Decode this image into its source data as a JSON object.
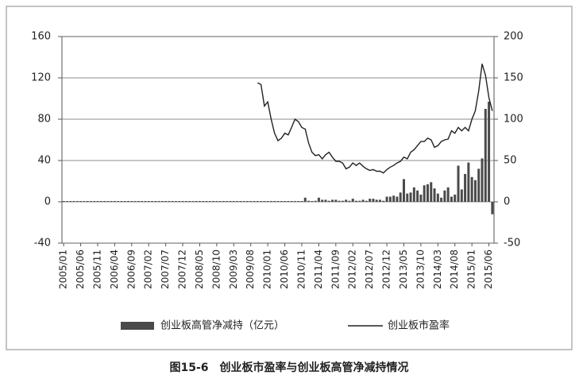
{
  "chart_data": {
    "type": "bar-line",
    "caption": "图15-6　创业板市盈率与创业板高管净减持情况",
    "categories": [
      "2005/01",
      null,
      null,
      null,
      null,
      "2005/06",
      null,
      null,
      null,
      null,
      "2005/11",
      null,
      null,
      null,
      null,
      "2006/04",
      null,
      null,
      null,
      null,
      "2006/09",
      null,
      null,
      null,
      null,
      "2007/02",
      null,
      null,
      null,
      null,
      "2007/07",
      null,
      null,
      null,
      null,
      "2007/12",
      null,
      null,
      null,
      null,
      "2008/05",
      null,
      null,
      null,
      null,
      "2008/10",
      null,
      null,
      null,
      null,
      "2009/03",
      null,
      null,
      null,
      null,
      "2009/08",
      null,
      null,
      null,
      null,
      "2010/01",
      null,
      null,
      null,
      null,
      "2010/06",
      null,
      null,
      null,
      null,
      "2010/11",
      null,
      null,
      null,
      null,
      "2011/04",
      null,
      null,
      null,
      null,
      "2011/09",
      null,
      null,
      null,
      null,
      "2012/02",
      null,
      null,
      null,
      null,
      "2012/07",
      null,
      null,
      null,
      null,
      "2012/12",
      null,
      null,
      null,
      null,
      "2013/05",
      null,
      null,
      null,
      null,
      "2013/10",
      null,
      null,
      null,
      null,
      "2014/03",
      null,
      null,
      null,
      null,
      "2014/08",
      null,
      null,
      null,
      null,
      "2015/01",
      null,
      null,
      null,
      null,
      "2015/06",
      null
    ],
    "series": [
      {
        "name": "创业板高管净减持（亿元）",
        "type": "bar",
        "color": "#4a4a4a",
        "values": [
          0,
          0,
          0,
          0,
          0,
          0,
          0,
          0,
          0,
          0,
          0,
          0,
          0,
          0,
          0,
          0,
          0,
          0,
          0,
          0,
          0,
          0,
          0,
          0,
          0,
          0,
          0,
          0,
          0,
          0,
          0,
          0,
          0,
          0,
          0,
          0,
          0,
          0,
          0,
          0,
          0,
          0,
          0,
          0,
          0,
          0,
          0,
          0,
          0,
          0,
          0,
          0,
          0,
          0,
          0,
          0,
          0,
          0,
          0,
          0,
          0,
          0,
          0,
          0,
          0,
          0,
          0,
          0,
          0,
          0,
          0,
          4,
          1,
          0.5,
          1,
          4,
          2,
          2,
          1,
          2,
          2,
          1,
          1,
          2,
          1,
          3,
          1,
          1,
          2,
          1,
          3,
          3,
          2,
          2,
          1,
          5,
          5,
          6,
          5,
          9,
          22,
          8,
          9,
          14,
          11,
          7,
          16,
          17,
          19,
          13,
          8,
          4,
          11,
          14,
          5,
          7,
          35,
          12,
          27,
          38,
          24,
          21,
          32,
          42,
          90,
          97,
          -12
        ]
      },
      {
        "name": "创业板市盈率",
        "type": "line",
        "axis": "y2",
        "color": "#222222",
        "values": [
          null,
          null,
          null,
          null,
          null,
          null,
          null,
          null,
          null,
          null,
          null,
          null,
          null,
          null,
          null,
          null,
          null,
          null,
          null,
          null,
          null,
          null,
          null,
          null,
          null,
          null,
          null,
          null,
          null,
          null,
          null,
          null,
          null,
          null,
          null,
          null,
          null,
          null,
          null,
          null,
          null,
          null,
          null,
          null,
          null,
          null,
          null,
          null,
          null,
          null,
          null,
          null,
          null,
          null,
          null,
          null,
          null,
          144,
          142,
          116,
          121,
          100,
          83,
          74,
          77,
          83,
          81,
          90,
          100,
          97,
          90,
          88,
          71,
          60,
          56,
          57,
          52,
          57,
          60,
          54,
          49,
          49,
          47,
          40,
          42,
          47,
          44,
          47,
          43,
          40,
          38,
          39,
          37,
          37,
          35,
          39,
          42,
          44,
          47,
          49,
          54,
          52,
          60,
          63,
          68,
          73,
          73,
          77,
          75,
          66,
          68,
          73,
          75,
          76,
          86,
          83,
          90,
          86,
          90,
          86,
          100,
          110,
          134,
          167,
          153,
          126,
          110
        ]
      }
    ],
    "ylim": [
      -40,
      160
    ],
    "yticks": [
      -40,
      0,
      40,
      80,
      120,
      160
    ],
    "y2lim": [
      -50,
      200
    ],
    "y2ticks": [
      -50,
      0,
      50,
      100,
      150,
      200
    ],
    "grid": true,
    "legend": "bottom"
  }
}
